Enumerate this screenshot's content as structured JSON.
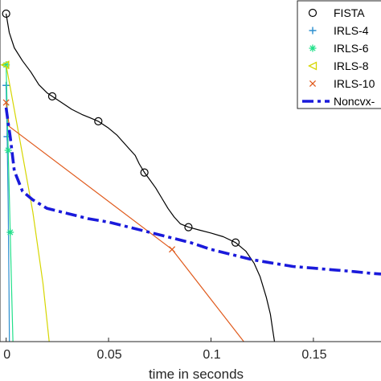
{
  "chart_data": {
    "type": "line",
    "title": "",
    "xlabel": "time in seconds",
    "ylabel": "",
    "xlim": [
      -0.003,
      0.183
    ],
    "ylim": [
      0,
      1
    ],
    "xticks": [
      0,
      0.05,
      0.1,
      0.15
    ],
    "xtick_labels": [
      "0",
      "0.05",
      "0.1",
      "0.15"
    ],
    "grid": false,
    "legend_position": "top-right",
    "series": [
      {
        "name": "FISTA",
        "color": "#000000",
        "marker": "circle",
        "line": "solid",
        "x": [
          0,
          0.0015,
          0.004,
          0.008,
          0.012,
          0.016,
          0.02,
          0.0225,
          0.027,
          0.032,
          0.037,
          0.041,
          0.045,
          0.05,
          0.054,
          0.057,
          0.06,
          0.063,
          0.065,
          0.0675,
          0.07,
          0.073,
          0.076,
          0.079,
          0.082,
          0.085,
          0.089,
          0.094,
          0.1,
          0.106,
          0.112,
          0.117,
          0.121,
          0.124,
          0.127,
          0.129,
          0.13,
          0.131
        ],
        "y": [
          0.96,
          0.905,
          0.86,
          0.822,
          0.79,
          0.752,
          0.728,
          0.718,
          0.7,
          0.68,
          0.665,
          0.655,
          0.645,
          0.625,
          0.605,
          0.585,
          0.565,
          0.545,
          0.52,
          0.495,
          0.475,
          0.45,
          0.42,
          0.39,
          0.365,
          0.345,
          0.335,
          0.327,
          0.318,
          0.307,
          0.29,
          0.265,
          0.23,
          0.19,
          0.13,
          0.08,
          0.04,
          0.0
        ],
        "marker_x": [
          0,
          0.0225,
          0.045,
          0.0675,
          0.089,
          0.112
        ],
        "marker_y": [
          0.96,
          0.718,
          0.645,
          0.495,
          0.335,
          0.29
        ]
      },
      {
        "name": "IRLS-4",
        "color": "#2b8fcf",
        "marker": "plus",
        "line": "solid",
        "x": [
          0,
          0.0005,
          0.001,
          0.0014,
          0.0016
        ],
        "y": [
          0.75,
          0.6,
          0.4,
          0.15,
          0.0
        ],
        "marker_x": [
          0,
          0.0005
        ],
        "marker_y": [
          0.75,
          0.6
        ]
      },
      {
        "name": "IRLS-6",
        "color": "#22e08a",
        "marker": "asterisk",
        "line": "solid",
        "x": [
          0,
          0.001,
          0.002,
          0.0028,
          0.0033
        ],
        "y": [
          0.81,
          0.56,
          0.32,
          0.12,
          0.0
        ],
        "marker_x": [
          0,
          0.001,
          0.002
        ],
        "marker_y": [
          0.81,
          0.56,
          0.32
        ]
      },
      {
        "name": "IRLS-8",
        "color": "#d6d600",
        "marker": "triangle-left",
        "line": "solid",
        "x": [
          0,
          0.007,
          0.013,
          0.018,
          0.021
        ],
        "y": [
          0.81,
          0.58,
          0.38,
          0.17,
          0.0
        ],
        "marker_x": [
          -0.0005
        ],
        "marker_y": [
          0.81
        ]
      },
      {
        "name": "IRLS-10",
        "color": "#e05a1c",
        "marker": "x",
        "line": "solid",
        "x": [
          0,
          0.0015,
          0.081,
          0.116
        ],
        "y": [
          0.7,
          0.63,
          0.27,
          0.0
        ],
        "marker_x": [
          0,
          0.081
        ],
        "marker_y": [
          0.7,
          0.27
        ]
      },
      {
        "name": "Noncvx-",
        "color": "#1a1adb",
        "marker": "none",
        "line": "dashdot",
        "x": [
          0,
          0.001,
          0.002,
          0.004,
          0.008,
          0.013,
          0.02,
          0.03,
          0.04,
          0.05,
          0.06,
          0.07,
          0.08,
          0.09,
          0.1,
          0.11,
          0.12,
          0.13,
          0.14,
          0.15,
          0.16,
          0.17,
          0.178,
          0.183
        ],
        "y": [
          0.685,
          0.64,
          0.6,
          0.5,
          0.44,
          0.415,
          0.39,
          0.375,
          0.36,
          0.35,
          0.335,
          0.32,
          0.305,
          0.29,
          0.27,
          0.255,
          0.24,
          0.23,
          0.22,
          0.215,
          0.21,
          0.205,
          0.2,
          0.198
        ]
      }
    ]
  }
}
